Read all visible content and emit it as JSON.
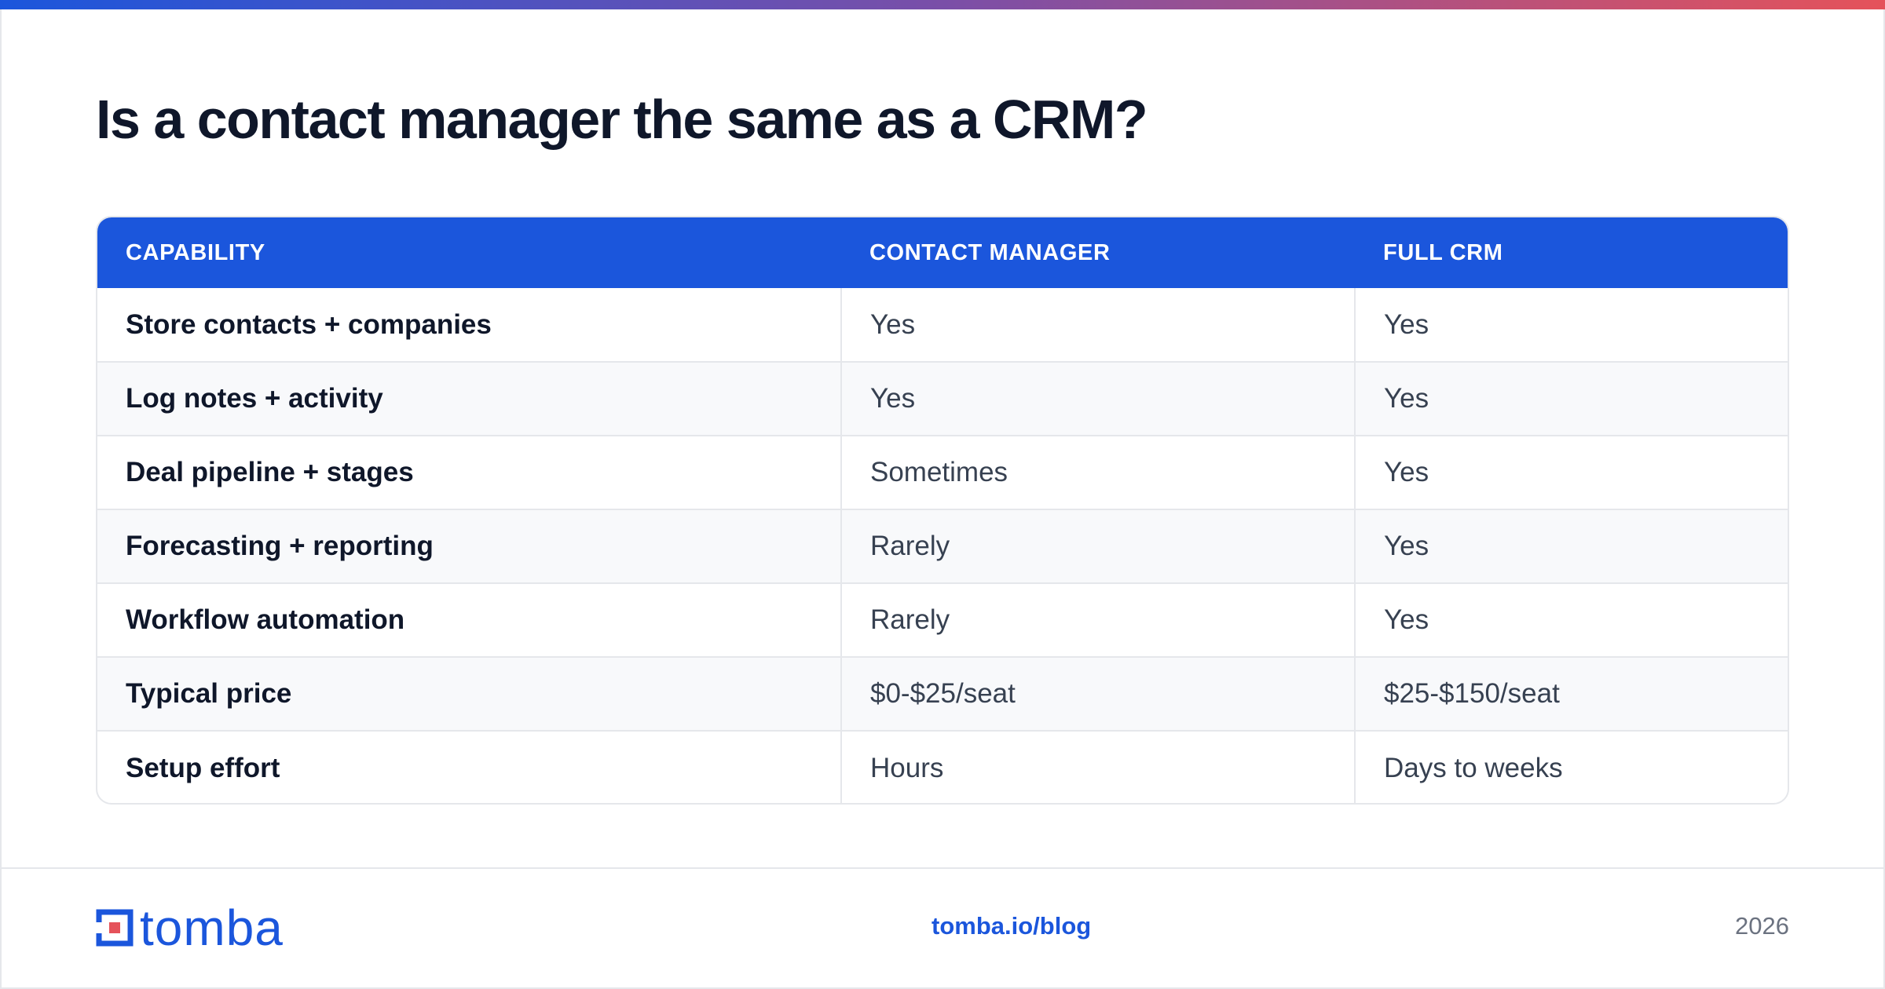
{
  "title": "Is a contact manager the same as a CRM?",
  "table": {
    "headers": [
      "CAPABILITY",
      "CONTACT MANAGER",
      "FULL CRM"
    ],
    "rows": [
      [
        "Store contacts + companies",
        "Yes",
        "Yes"
      ],
      [
        "Log notes + activity",
        "Yes",
        "Yes"
      ],
      [
        "Deal pipeline + stages",
        "Sometimes",
        "Yes"
      ],
      [
        "Forecasting + reporting",
        "Rarely",
        "Yes"
      ],
      [
        "Workflow automation",
        "Rarely",
        "Yes"
      ],
      [
        "Typical price",
        "$0-$25/seat",
        "$25-$150/seat"
      ],
      [
        "Setup effort",
        "Hours",
        "Days to weeks"
      ]
    ]
  },
  "footer": {
    "logo_text": "tomba",
    "logo_icon": "tomba-logo-mark-icon",
    "url": "tomba.io/blog",
    "year": "2026"
  },
  "colors": {
    "brand_blue": "#1b56dc",
    "accent_red": "#e5525a"
  }
}
